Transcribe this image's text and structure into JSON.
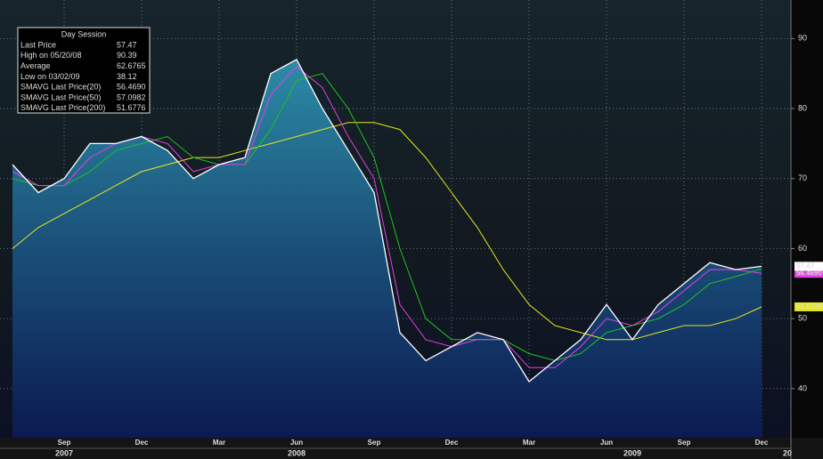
{
  "chart_data": {
    "type": "line",
    "x": [
      "2007-07",
      "2007-08",
      "2007-09",
      "2007-10",
      "2007-11",
      "2007-12",
      "2008-01",
      "2008-02",
      "2008-03",
      "2008-04",
      "2008-05",
      "2008-06",
      "2008-07",
      "2008-08",
      "2008-09",
      "2008-10",
      "2008-11",
      "2008-12",
      "2009-01",
      "2009-02",
      "2009-03",
      "2009-04",
      "2009-05",
      "2009-06",
      "2009-07",
      "2009-08",
      "2009-09",
      "2009-10",
      "2009-11",
      "2009-12"
    ],
    "xlim": [
      "2007-07",
      "2009-12"
    ],
    "xticks": [
      {
        "value": "2007-09",
        "label": "Sep"
      },
      {
        "value": "2007-12",
        "label": "Dec"
      },
      {
        "value": "2008-03",
        "label": "Mar"
      },
      {
        "value": "2008-06",
        "label": "Jun"
      },
      {
        "value": "2008-09",
        "label": "Sep"
      },
      {
        "value": "2008-12",
        "label": "Dec"
      },
      {
        "value": "2009-03",
        "label": "Mar"
      },
      {
        "value": "2009-06",
        "label": "Jun"
      },
      {
        "value": "2009-09",
        "label": "Sep"
      },
      {
        "value": "2009-12",
        "label": "Dec"
      }
    ],
    "year_labels": [
      {
        "value": "2007-09",
        "label": "2007"
      },
      {
        "value": "2008-06",
        "label": "2008"
      },
      {
        "value": "2009-07",
        "label": "2009"
      },
      {
        "value": "2010-01",
        "label": "20"
      }
    ],
    "ylim": [
      33,
      95.5
    ],
    "yticks": [
      40,
      50,
      60,
      70,
      80,
      90
    ],
    "grid": true,
    "legend": {
      "title": "Day Session",
      "stats": [
        {
          "label": "High on  05/20/08",
          "value": "90.39"
        },
        {
          "label": "Average",
          "value": "62.6765"
        },
        {
          "label": "Low on  03/02/09",
          "value": "38.12"
        }
      ]
    },
    "series": [
      {
        "name": "Last Price",
        "color": "#ffffff",
        "area": true,
        "legend_value": "57.47",
        "values": [
          72,
          68,
          70,
          75,
          75,
          76,
          74,
          70,
          72,
          73,
          85,
          87,
          80,
          74,
          68,
          48,
          44,
          46,
          48,
          47,
          41,
          44,
          47,
          52,
          47,
          52,
          55,
          58,
          57,
          57.47
        ]
      },
      {
        "name": "SMAVG Last Price(20)",
        "color": "#e040e0",
        "legend_value": "56.4690",
        "values": [
          71,
          69,
          69,
          73,
          75,
          76,
          75,
          71,
          72,
          72,
          82,
          86,
          83,
          76,
          70,
          52,
          47,
          46,
          47,
          47,
          43,
          43,
          46,
          50,
          49,
          51,
          54,
          57,
          57,
          56.469
        ]
      },
      {
        "name": "SMAVG Last Price(50)",
        "color": "#22c022",
        "legend_value": "57.0982",
        "values": [
          70,
          69,
          69,
          71,
          74,
          75,
          76,
          73,
          72,
          72,
          77,
          84,
          85,
          80,
          73,
          60,
          50,
          47,
          47,
          47,
          45,
          44,
          45,
          48,
          49,
          50,
          52,
          55,
          56,
          57.0982
        ]
      },
      {
        "name": "SMAVG Last Price(200)",
        "color": "#e6e61e",
        "legend_value": "51.6776",
        "values": [
          60,
          63,
          65,
          67,
          69,
          71,
          72,
          73,
          73,
          74,
          75,
          76,
          77,
          78,
          78,
          77,
          73,
          68,
          63,
          57,
          52,
          49,
          48,
          47,
          47,
          48,
          49,
          49,
          50,
          51.6776
        ]
      }
    ]
  }
}
